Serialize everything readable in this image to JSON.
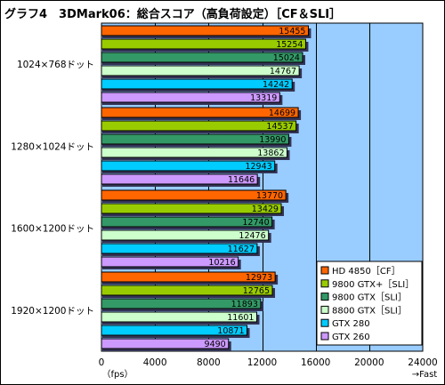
{
  "chart_data": {
    "type": "bar",
    "orientation": "horizontal",
    "title": "グラフ4　3DMark06：総合スコア（高負荷設定）［CF＆SLI］",
    "categories": [
      "1024×768ドット",
      "1280×1024ドット",
      "1600×1200ドット",
      "1920×1200ドット"
    ],
    "series": [
      {
        "name": "HD 4850［CF］",
        "color": "#ff6600",
        "values": [
          15455,
          14699,
          13770,
          12973
        ]
      },
      {
        "name": "9800 GTX+［SLI］",
        "color": "#99cc00",
        "values": [
          15254,
          14537,
          13429,
          12765
        ]
      },
      {
        "name": "9800 GTX［SLI］",
        "color": "#339966",
        "values": [
          15024,
          13990,
          12740,
          11893
        ]
      },
      {
        "name": "8800 GTX［SLI］",
        "color": "#ccffcc",
        "values": [
          14767,
          13862,
          12476,
          11601
        ]
      },
      {
        "name": "GTX 280",
        "color": "#00ccff",
        "values": [
          14242,
          12943,
          11627,
          10871
        ]
      },
      {
        "name": "GTX 260",
        "color": "#cc99ff",
        "values": [
          13319,
          11646,
          10216,
          9490
        ]
      }
    ],
    "xlim": [
      0,
      24000
    ],
    "xticks": [
      "0",
      "4000",
      "8000",
      "12000",
      "16000",
      "20000",
      "24000"
    ],
    "xunit": "（fps）",
    "xnote": "→Fast",
    "plot_background": "#99ccff",
    "legend": "bottom-right",
    "grid": true
  }
}
